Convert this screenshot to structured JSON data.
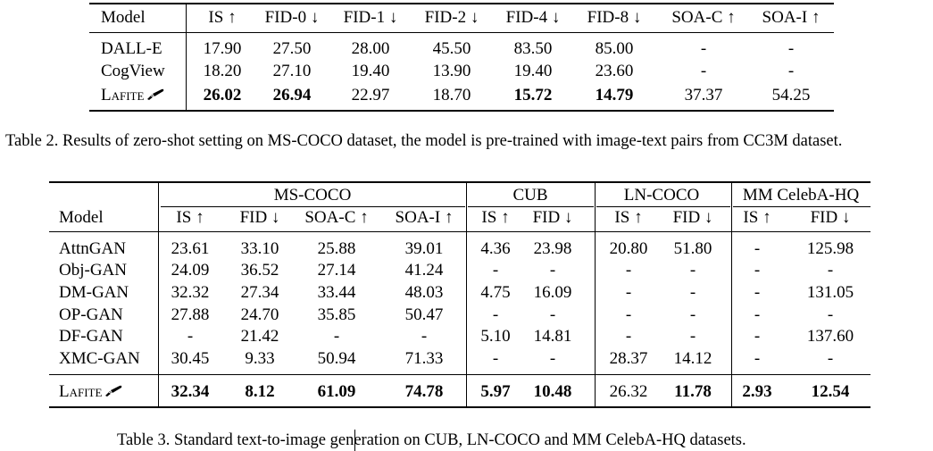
{
  "table2": {
    "headers": [
      "Model",
      "IS ↑",
      "FID-0 ↓",
      "FID-1 ↓",
      "FID-2 ↓",
      "FID-4 ↓",
      "FID-8 ↓",
      "SOA-C ↑",
      "SOA-I ↑"
    ],
    "rows": [
      {
        "model": "DALL-E",
        "cells": [
          "17.90",
          "27.50",
          "28.00",
          "45.50",
          "83.50",
          "85.00",
          "-",
          "-"
        ]
      },
      {
        "model": "CogView",
        "cells": [
          "18.20",
          "27.10",
          "19.40",
          "13.90",
          "19.40",
          "23.60",
          "-",
          "-"
        ]
      },
      {
        "model": "Lafite",
        "cells": [
          "26.02",
          "26.94",
          "22.97",
          "18.70",
          "15.72",
          "14.79",
          "37.37",
          "54.25"
        ]
      }
    ],
    "caption": "Table 2. Results of zero-shot setting on MS-COCO dataset, the model is pre-trained with image-text pairs from CC3M dataset."
  },
  "table3": {
    "groups": [
      "MS-COCO",
      "CUB",
      "LN-COCO",
      "MM CelebA-HQ"
    ],
    "headers": [
      "Model",
      "IS ↑",
      "FID ↓",
      "SOA-C ↑",
      "SOA-I ↑",
      "IS ↑",
      "FID ↓",
      "IS ↑",
      "FID ↓",
      "IS ↑",
      "FID ↓"
    ],
    "rows": [
      {
        "model": "AttnGAN",
        "cells": [
          "23.61",
          "33.10",
          "25.88",
          "39.01",
          "4.36",
          "23.98",
          "20.80",
          "51.80",
          "-",
          "125.98"
        ]
      },
      {
        "model": "Obj-GAN",
        "cells": [
          "24.09",
          "36.52",
          "27.14",
          "41.24",
          "-",
          "-",
          "-",
          "-",
          "-",
          "-"
        ]
      },
      {
        "model": "DM-GAN",
        "cells": [
          "32.32",
          "27.34",
          "33.44",
          "48.03",
          "4.75",
          "16.09",
          "-",
          "-",
          "-",
          "131.05"
        ]
      },
      {
        "model": "OP-GAN",
        "cells": [
          "27.88",
          "24.70",
          "35.85",
          "50.47",
          "-",
          "-",
          "-",
          "-",
          "-",
          "-"
        ]
      },
      {
        "model": "DF-GAN",
        "cells": [
          "-",
          "21.42",
          "-",
          "-",
          "5.10",
          "14.81",
          "-",
          "-",
          "-",
          "137.60"
        ]
      },
      {
        "model": "XMC-GAN",
        "cells": [
          "30.45",
          "9.33",
          "50.94",
          "71.33",
          "-",
          "-",
          "28.37",
          "14.12",
          "-",
          "-"
        ]
      }
    ],
    "final": {
      "model": "Lafite",
      "cells": [
        "32.34",
        "8.12",
        "61.09",
        "74.78",
        "5.97",
        "10.48",
        "26.32",
        "11.78",
        "2.93",
        "12.54"
      ]
    },
    "caption": "Table 3. Standard text-to-image generation on CUB, LN-COCO and MM CelebA-HQ datasets."
  },
  "icons": {
    "brush": "paintbrush-icon"
  }
}
